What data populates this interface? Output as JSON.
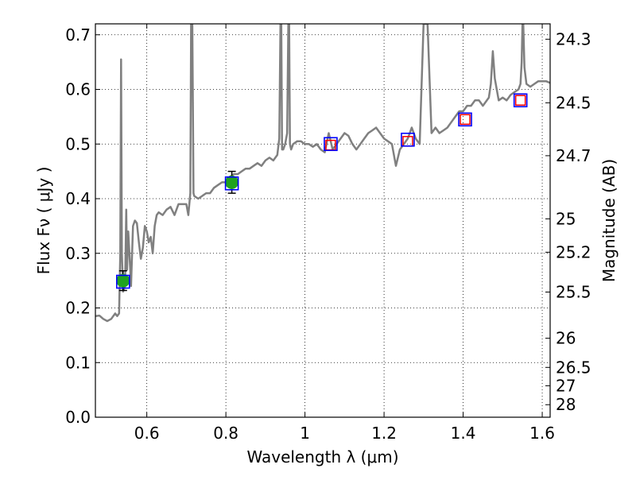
{
  "chart_data": {
    "type": "line",
    "title": "",
    "xlabel": "Wavelength  λ (μm)",
    "ylabel": "Flux  Fν  ( μJy )",
    "y2label": "Magnitude (AB)",
    "xlim": [
      0.47,
      1.62
    ],
    "ylim": [
      0.0,
      0.72
    ],
    "grid": true,
    "x_ticks": [
      {
        "value": 0.6,
        "label": "0.6"
      },
      {
        "value": 0.8,
        "label": "0.8"
      },
      {
        "value": 1.0,
        "label": "1"
      },
      {
        "value": 1.2,
        "label": "1.2"
      },
      {
        "value": 1.4,
        "label": "1.4"
      },
      {
        "value": 1.6,
        "label": "1.6"
      }
    ],
    "y_ticks": [
      {
        "value": 0.0,
        "label": "0.0"
      },
      {
        "value": 0.1,
        "label": "0.1"
      },
      {
        "value": 0.2,
        "label": "0.2"
      },
      {
        "value": 0.3,
        "label": "0.3"
      },
      {
        "value": 0.4,
        "label": "0.4"
      },
      {
        "value": 0.5,
        "label": "0.5"
      },
      {
        "value": 0.6,
        "label": "0.6"
      },
      {
        "value": 0.7,
        "label": "0.7"
      }
    ],
    "y2_ticks": [
      {
        "value": 24.3,
        "label": "24.3"
      },
      {
        "value": 24.5,
        "label": "24.5"
      },
      {
        "value": 24.7,
        "label": "24.7"
      },
      {
        "value": 25.0,
        "label": "25"
      },
      {
        "value": 25.2,
        "label": "25.2"
      },
      {
        "value": 25.5,
        "label": "25.5"
      },
      {
        "value": 26.0,
        "label": "26"
      },
      {
        "value": 26.5,
        "label": "26.5"
      },
      {
        "value": 27.0,
        "label": "27"
      },
      {
        "value": 28.0,
        "label": "28"
      }
    ],
    "colors": {
      "spectrum": "#808080",
      "observed_fill": "#1fa31f",
      "model_box": "#0000ff",
      "photometry_box": "#ff0000",
      "errorbar": "#000000",
      "grid": "#000000"
    },
    "series": [
      {
        "name": "model spectrum",
        "kind": "line",
        "x": [
          0.47,
          0.48,
          0.49,
          0.5,
          0.51,
          0.52,
          0.525,
          0.53,
          0.533,
          0.535,
          0.537,
          0.54,
          0.545,
          0.548,
          0.55,
          0.553,
          0.556,
          0.56,
          0.565,
          0.57,
          0.575,
          0.58,
          0.585,
          0.59,
          0.595,
          0.6,
          0.605,
          0.61,
          0.615,
          0.62,
          0.625,
          0.63,
          0.64,
          0.65,
          0.66,
          0.67,
          0.68,
          0.69,
          0.7,
          0.705,
          0.71,
          0.712,
          0.715,
          0.718,
          0.72,
          0.73,
          0.74,
          0.75,
          0.76,
          0.77,
          0.78,
          0.79,
          0.8,
          0.81,
          0.82,
          0.83,
          0.84,
          0.85,
          0.86,
          0.87,
          0.88,
          0.89,
          0.9,
          0.91,
          0.92,
          0.93,
          0.935,
          0.938,
          0.94,
          0.942,
          0.945,
          0.95,
          0.955,
          0.958,
          0.96,
          0.962,
          0.965,
          0.97,
          0.98,
          0.99,
          1.0,
          1.01,
          1.02,
          1.03,
          1.04,
          1.05,
          1.06,
          1.07,
          1.08,
          1.09,
          1.1,
          1.11,
          1.12,
          1.13,
          1.14,
          1.15,
          1.16,
          1.17,
          1.18,
          1.19,
          1.2,
          1.21,
          1.22,
          1.23,
          1.24,
          1.25,
          1.26,
          1.27,
          1.28,
          1.29,
          1.3,
          1.31,
          1.32,
          1.33,
          1.34,
          1.35,
          1.36,
          1.37,
          1.38,
          1.39,
          1.4,
          1.41,
          1.42,
          1.43,
          1.44,
          1.45,
          1.46,
          1.465,
          1.47,
          1.475,
          1.48,
          1.49,
          1.5,
          1.51,
          1.52,
          1.53,
          1.54,
          1.545,
          1.548,
          1.55,
          1.552,
          1.555,
          1.56,
          1.57,
          1.58,
          1.59,
          1.6,
          1.61,
          1.62
        ],
        "y": [
          0.185,
          0.186,
          0.18,
          0.176,
          0.18,
          0.19,
          0.185,
          0.19,
          0.3,
          0.655,
          0.3,
          0.23,
          0.24,
          0.38,
          0.27,
          0.34,
          0.3,
          0.24,
          0.35,
          0.36,
          0.355,
          0.32,
          0.29,
          0.31,
          0.35,
          0.34,
          0.32,
          0.33,
          0.3,
          0.35,
          0.37,
          0.375,
          0.37,
          0.38,
          0.385,
          0.37,
          0.39,
          0.39,
          0.39,
          0.37,
          0.41,
          0.72,
          0.72,
          0.41,
          0.405,
          0.4,
          0.405,
          0.41,
          0.41,
          0.42,
          0.425,
          0.43,
          0.43,
          0.44,
          0.445,
          0.445,
          0.45,
          0.455,
          0.455,
          0.46,
          0.465,
          0.46,
          0.47,
          0.475,
          0.47,
          0.48,
          0.51,
          0.72,
          0.72,
          0.49,
          0.49,
          0.5,
          0.52,
          0.72,
          0.72,
          0.5,
          0.49,
          0.5,
          0.505,
          0.505,
          0.5,
          0.5,
          0.495,
          0.5,
          0.49,
          0.485,
          0.52,
          0.49,
          0.5,
          0.51,
          0.52,
          0.515,
          0.5,
          0.49,
          0.5,
          0.51,
          0.52,
          0.525,
          0.53,
          0.52,
          0.51,
          0.505,
          0.5,
          0.46,
          0.49,
          0.5,
          0.51,
          0.53,
          0.51,
          0.5,
          0.72,
          0.72,
          0.52,
          0.53,
          0.52,
          0.525,
          0.53,
          0.54,
          0.55,
          0.56,
          0.56,
          0.57,
          0.57,
          0.58,
          0.58,
          0.57,
          0.58,
          0.585,
          0.61,
          0.67,
          0.62,
          0.58,
          0.585,
          0.58,
          0.59,
          0.595,
          0.6,
          0.61,
          0.65,
          0.72,
          0.72,
          0.64,
          0.61,
          0.605,
          0.61,
          0.615,
          0.615,
          0.615,
          0.612
        ]
      },
      {
        "name": "observed photometry",
        "kind": "points",
        "x": [
          0.54,
          0.815
        ],
        "y": [
          0.25,
          0.43
        ],
        "yerr": [
          0.018,
          0.02
        ]
      },
      {
        "name": "model photometry",
        "kind": "points",
        "x": [
          0.54,
          0.815,
          1.065,
          1.26,
          1.405,
          1.545
        ],
        "y": [
          0.248,
          0.428,
          0.5,
          0.508,
          0.545,
          0.58
        ]
      },
      {
        "name": "photometry upper limits",
        "kind": "points",
        "x": [
          1.065,
          1.26,
          1.405,
          1.545
        ],
        "y": [
          0.498,
          0.505,
          0.545,
          0.58
        ]
      }
    ]
  }
}
